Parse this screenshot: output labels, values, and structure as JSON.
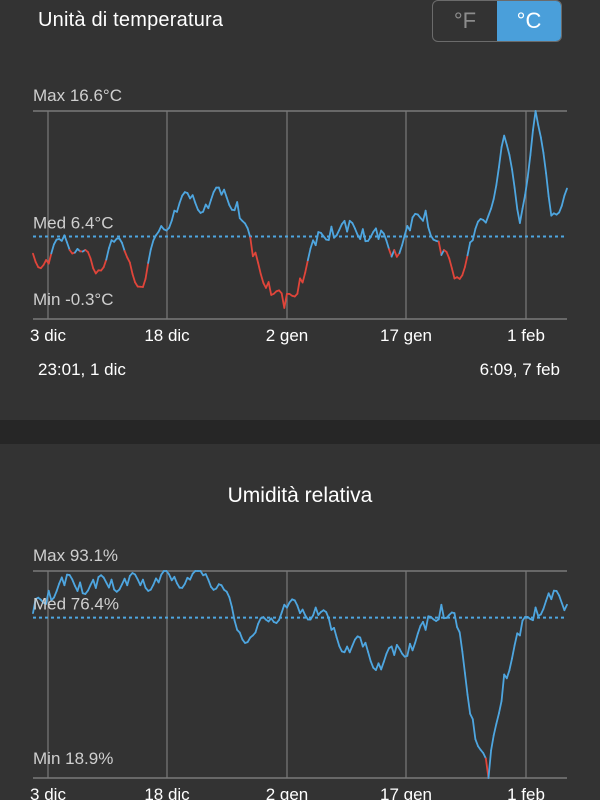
{
  "header": {
    "title": "Unità di temperatura",
    "unit_f": "°F",
    "unit_c": "°C",
    "selected_unit": "°C"
  },
  "range": {
    "start": "23:01,  1 dic",
    "end": "6:09,  7 feb"
  },
  "colors": {
    "line": "#4ea6e0",
    "below_avg": "#e0453a",
    "grid": "#7a7a7a",
    "accent": "#4a9fda"
  },
  "humidity": {
    "title": "Umidità relativa"
  },
  "chart_data": [
    {
      "type": "line",
      "title": "",
      "x_ticks": [
        "3 dic",
        "18 dic",
        "2 gen",
        "17 gen",
        "1 feb"
      ],
      "max_label": "Max 16.6°C",
      "avg_label": "Med 6.4°C",
      "min_label": "Min -0.3°C",
      "ylim": [
        -0.3,
        16.6
      ],
      "average": 6.4,
      "x": [
        "1 dic",
        "3 dic",
        "5 dic",
        "7 dic",
        "9 dic",
        "11 dic",
        "13 dic",
        "15 dic",
        "17 dic",
        "19 dic",
        "21 dic",
        "23 dic",
        "25 dic",
        "27 dic",
        "29 dic",
        "31 dic",
        "2 gen",
        "4 gen",
        "6 gen",
        "8 gen",
        "10 gen",
        "12 gen",
        "14 gen",
        "16 gen",
        "18 gen",
        "20 gen",
        "22 gen",
        "24 gen",
        "26 gen",
        "28 gen",
        "30 gen",
        "1 feb",
        "3 feb",
        "5 feb",
        "7 feb"
      ],
      "series": [
        {
          "values": [
            5.0,
            4.2,
            6.5,
            5.2,
            3.4,
            6.1,
            4.7,
            2.3,
            6.8,
            8.5,
            9.5,
            9.0,
            9.8,
            9.2,
            4.8,
            2.7,
            0.6,
            3.0,
            5.7,
            7.2,
            6.8,
            7.0,
            6.2,
            5.3,
            6.9,
            8.5,
            4.9,
            3.1,
            6.1,
            8.1,
            14.6,
            7.5,
            16.6,
            8.1,
            10.3
          ]
        }
      ]
    },
    {
      "type": "line",
      "title": "",
      "x_ticks": [
        "3 dic",
        "18 dic",
        "2 gen",
        "17 gen",
        "1 feb"
      ],
      "max_label": "Max 93.1%",
      "avg_label": "Med 76.4%",
      "min_label": "Min 18.9%",
      "ylim": [
        18.9,
        93.1
      ],
      "average": 76.4,
      "x": [
        "1 dic",
        "3 dic",
        "5 dic",
        "7 dic",
        "9 dic",
        "11 dic",
        "13 dic",
        "15 dic",
        "17 dic",
        "19 dic",
        "21 dic",
        "23 dic",
        "25 dic",
        "27 dic",
        "29 dic",
        "31 dic",
        "2 gen",
        "4 gen",
        "6 gen",
        "8 gen",
        "10 gen",
        "12 gen",
        "14 gen",
        "16 gen",
        "18 gen",
        "20 gen",
        "22 gen",
        "24 gen",
        "26 gen",
        "28 gen",
        "30 gen",
        "1 feb",
        "3 feb",
        "5 feb",
        "7 feb"
      ],
      "series": [
        {
          "values": [
            78,
            86,
            88,
            89,
            87,
            90,
            88,
            90,
            89,
            91,
            90,
            92,
            88,
            72,
            70,
            75,
            81,
            78,
            80,
            72,
            66,
            66,
            60,
            63,
            67,
            72,
            81,
            73,
            40,
            18.9,
            56,
            70,
            80,
            83,
            81
          ]
        }
      ]
    }
  ]
}
